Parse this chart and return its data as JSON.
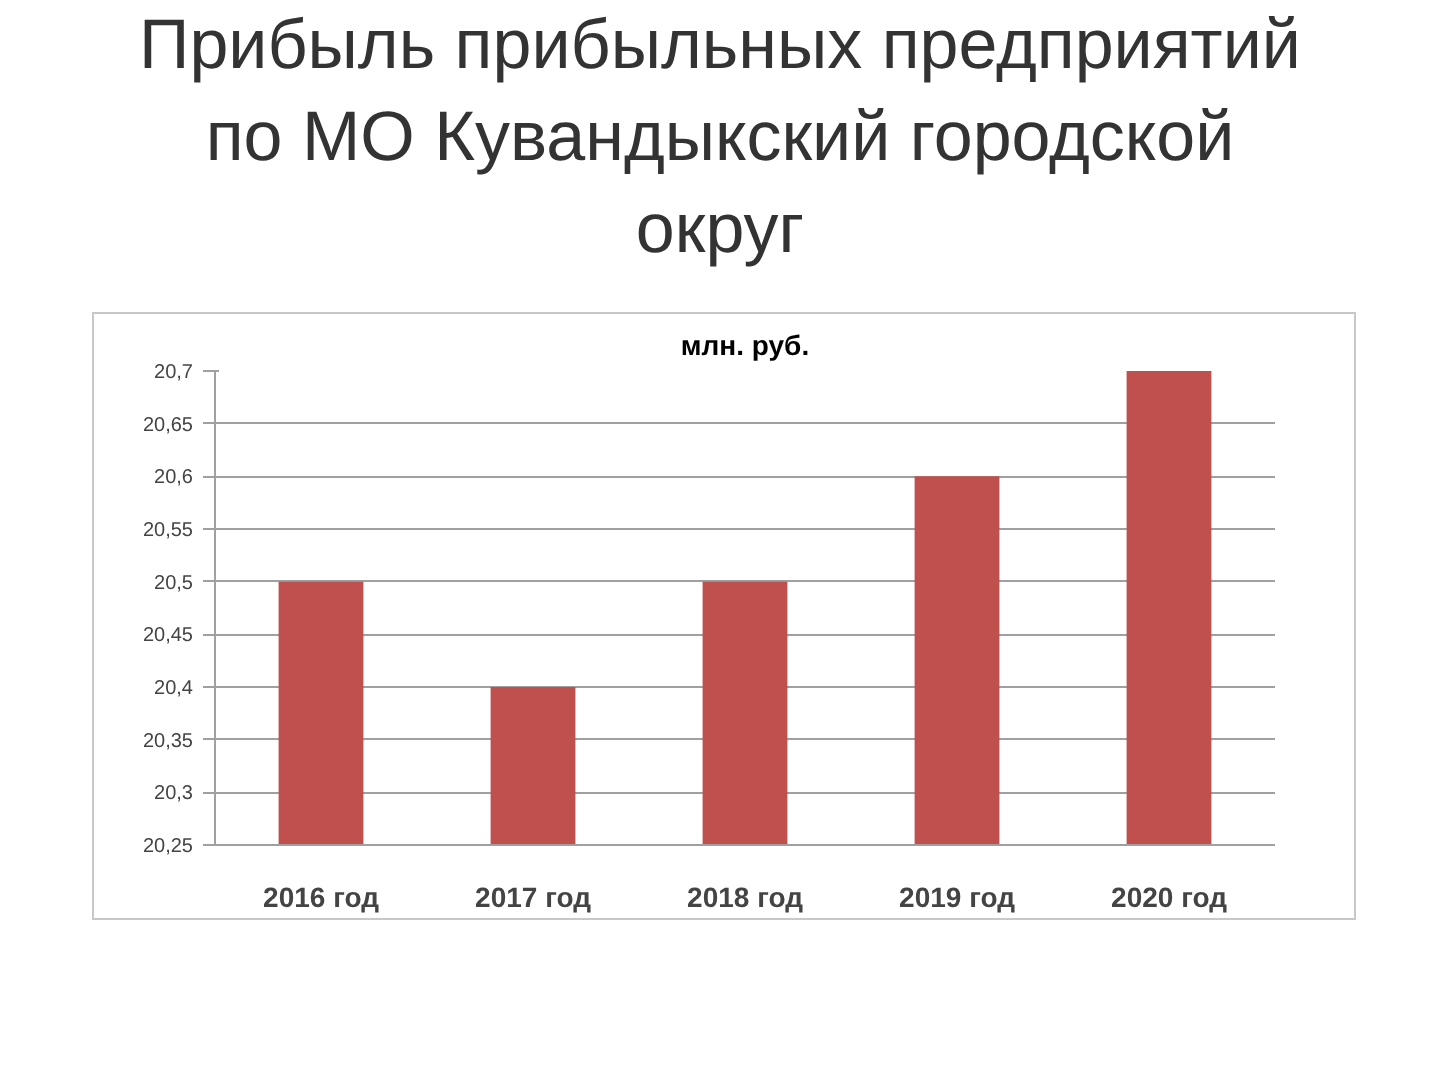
{
  "chart_data": {
    "type": "bar",
    "title": "Прибыль прибыльных предприятий по МО Кувандыкский городской округ",
    "subtitle": "млн. руб.",
    "categories": [
      "2016 год",
      "2017 год",
      "2018 год",
      "2019 год",
      "2020 год"
    ],
    "values": [
      20.5,
      20.4,
      20.5,
      20.6,
      20.7
    ],
    "color": "#c0504d",
    "ylim": [
      20.25,
      20.7
    ],
    "yticks": [
      {
        "value": 20.25,
        "label": "20,25"
      },
      {
        "value": 20.3,
        "label": "20,3"
      },
      {
        "value": 20.35,
        "label": "20,35"
      },
      {
        "value": 20.4,
        "label": "20,4"
      },
      {
        "value": 20.45,
        "label": "20,45"
      },
      {
        "value": 20.5,
        "label": "20,5"
      },
      {
        "value": 20.55,
        "label": "20,55"
      },
      {
        "value": 20.6,
        "label": "20,6"
      },
      {
        "value": 20.65,
        "label": "20,65"
      },
      {
        "value": 20.7,
        "label": "20,7"
      }
    ],
    "grid": "y"
  }
}
